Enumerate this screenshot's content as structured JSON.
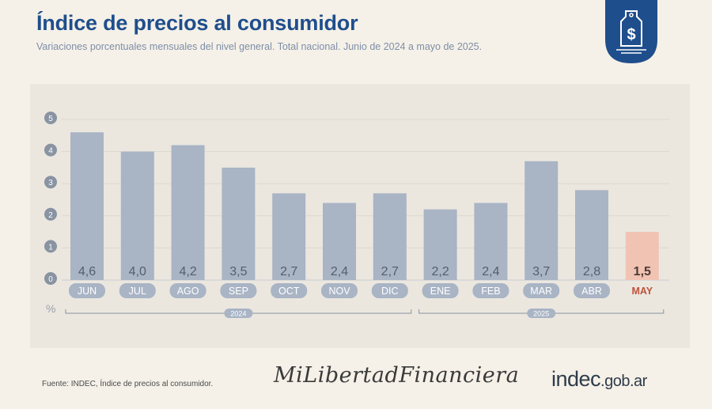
{
  "header": {
    "title": "Índice de precios al consumidor",
    "subtitle": "Variaciones porcentuales mensuales del nivel general. Total nacional. Junio de 2024 a mayo de 2025."
  },
  "badge": {
    "icon": "price-tag-dollar-icon",
    "symbol": "$",
    "color": "#1f4e8c"
  },
  "chart_data": {
    "type": "bar",
    "categories": [
      "JUN",
      "JUL",
      "AGO",
      "SEP",
      "OCT",
      "NOV",
      "DIC",
      "ENE",
      "FEB",
      "MAR",
      "ABR",
      "MAY"
    ],
    "values": [
      4.6,
      4.0,
      4.2,
      3.5,
      2.7,
      2.4,
      2.7,
      2.2,
      2.4,
      3.7,
      2.8,
      1.5
    ],
    "value_labels": [
      "4,6",
      "4,0",
      "4,2",
      "3,5",
      "2,7",
      "2,4",
      "2,7",
      "2,2",
      "2,4",
      "3,7",
      "2,8",
      "1,5"
    ],
    "y_ticks": [
      "0",
      "1",
      "2",
      "3",
      "4",
      "5"
    ],
    "ylim": [
      0,
      5
    ],
    "ylabel": "%",
    "highlight": "MAY",
    "groups": [
      {
        "label": "2024",
        "from": 0,
        "to": 6
      },
      {
        "label": "2025",
        "from": 7,
        "to": 11
      }
    ],
    "colors": {
      "bar": "#a9b4c5",
      "highlight": "#f0c3b2",
      "highlight_text": "#c0523d",
      "text": "#565e6b",
      "tick_circle": "#8993a2"
    },
    "grid": true
  },
  "footer": {
    "source": "Fuente: INDEC, Índice de precios al consumidor.",
    "signature": "MiLibertadFinanciera",
    "logo_main": "indec",
    "logo_domain": ".gob.ar"
  }
}
